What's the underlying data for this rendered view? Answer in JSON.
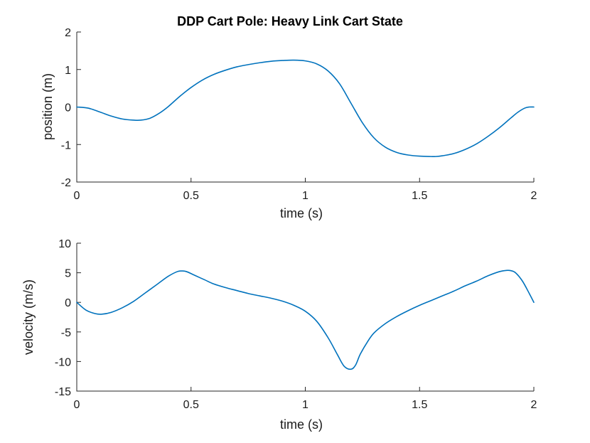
{
  "colors": {
    "series": "#0072BD",
    "axis": "#262626"
  },
  "chart_data": [
    {
      "type": "line",
      "title": "DDP Cart Pole: Heavy Link Cart State",
      "xlabel": "time (s)",
      "ylabel": "position (m)",
      "xlim": [
        0,
        2
      ],
      "ylim": [
        -2,
        2
      ],
      "xticks": [
        0,
        0.5,
        1,
        1.5,
        2
      ],
      "xtick_labels": [
        "0",
        "0.5",
        "1",
        "1.5",
        "2"
      ],
      "yticks": [
        -2,
        -1,
        0,
        1,
        2
      ],
      "ytick_labels": [
        "-2",
        "-1",
        "0",
        "1",
        "2"
      ],
      "grid": false,
      "series": [
        {
          "x": [
            0,
            0.05,
            0.1,
            0.15,
            0.2,
            0.25,
            0.28,
            0.32,
            0.36,
            0.4,
            0.45,
            0.5,
            0.55,
            0.6,
            0.65,
            0.7,
            0.75,
            0.8,
            0.85,
            0.9,
            0.95,
            1.0,
            1.05,
            1.1,
            1.15,
            1.2,
            1.25,
            1.3,
            1.35,
            1.4,
            1.45,
            1.5,
            1.55,
            1.57,
            1.6,
            1.65,
            1.7,
            1.75,
            1.8,
            1.85,
            1.9,
            1.93,
            1.96,
            1.98,
            2.0
          ],
          "y": [
            0,
            -0.03,
            -0.13,
            -0.24,
            -0.32,
            -0.35,
            -0.35,
            -0.3,
            -0.17,
            0.01,
            0.28,
            0.52,
            0.72,
            0.87,
            0.98,
            1.07,
            1.13,
            1.18,
            1.22,
            1.24,
            1.25,
            1.23,
            1.15,
            0.96,
            0.62,
            0.1,
            -0.42,
            -0.82,
            -1.07,
            -1.21,
            -1.28,
            -1.31,
            -1.32,
            -1.32,
            -1.3,
            -1.24,
            -1.13,
            -0.98,
            -0.78,
            -0.55,
            -0.29,
            -0.14,
            -0.03,
            0.0,
            0.0
          ]
        }
      ]
    },
    {
      "type": "line",
      "title": "",
      "xlabel": "time (s)",
      "ylabel": "velocity (m/s)",
      "xlim": [
        0,
        2
      ],
      "ylim": [
        -15,
        10
      ],
      "xticks": [
        0,
        0.5,
        1,
        1.5,
        2
      ],
      "xtick_labels": [
        "0",
        "0.5",
        "1",
        "1.5",
        "2"
      ],
      "yticks": [
        -15,
        -10,
        -5,
        0,
        5,
        10
      ],
      "ytick_labels": [
        "-15",
        "-10",
        "-5",
        "0",
        "5",
        "10"
      ],
      "grid": false,
      "series": [
        {
          "x": [
            0,
            0.04,
            0.08,
            0.11,
            0.15,
            0.2,
            0.25,
            0.3,
            0.35,
            0.4,
            0.44,
            0.46,
            0.48,
            0.52,
            0.56,
            0.6,
            0.65,
            0.7,
            0.75,
            0.8,
            0.85,
            0.9,
            0.95,
            1.0,
            1.05,
            1.1,
            1.14,
            1.17,
            1.2,
            1.22,
            1.24,
            1.27,
            1.3,
            1.35,
            1.4,
            1.45,
            1.5,
            1.55,
            1.6,
            1.65,
            1.7,
            1.75,
            1.8,
            1.85,
            1.88,
            1.9,
            1.92,
            1.95,
            1.98,
            2.0
          ],
          "y": [
            0,
            -1.3,
            -1.9,
            -2.0,
            -1.7,
            -0.9,
            0.2,
            1.6,
            3.0,
            4.4,
            5.2,
            5.3,
            5.2,
            4.5,
            3.8,
            3.1,
            2.5,
            2.0,
            1.5,
            1.1,
            0.7,
            0.2,
            -0.5,
            -1.5,
            -3.2,
            -6.0,
            -8.8,
            -10.8,
            -11.3,
            -10.6,
            -8.8,
            -6.8,
            -5.2,
            -3.6,
            -2.4,
            -1.4,
            -0.5,
            0.3,
            1.1,
            1.9,
            2.8,
            3.6,
            4.5,
            5.2,
            5.4,
            5.35,
            5.0,
            3.6,
            1.5,
            0.0
          ]
        }
      ]
    }
  ]
}
